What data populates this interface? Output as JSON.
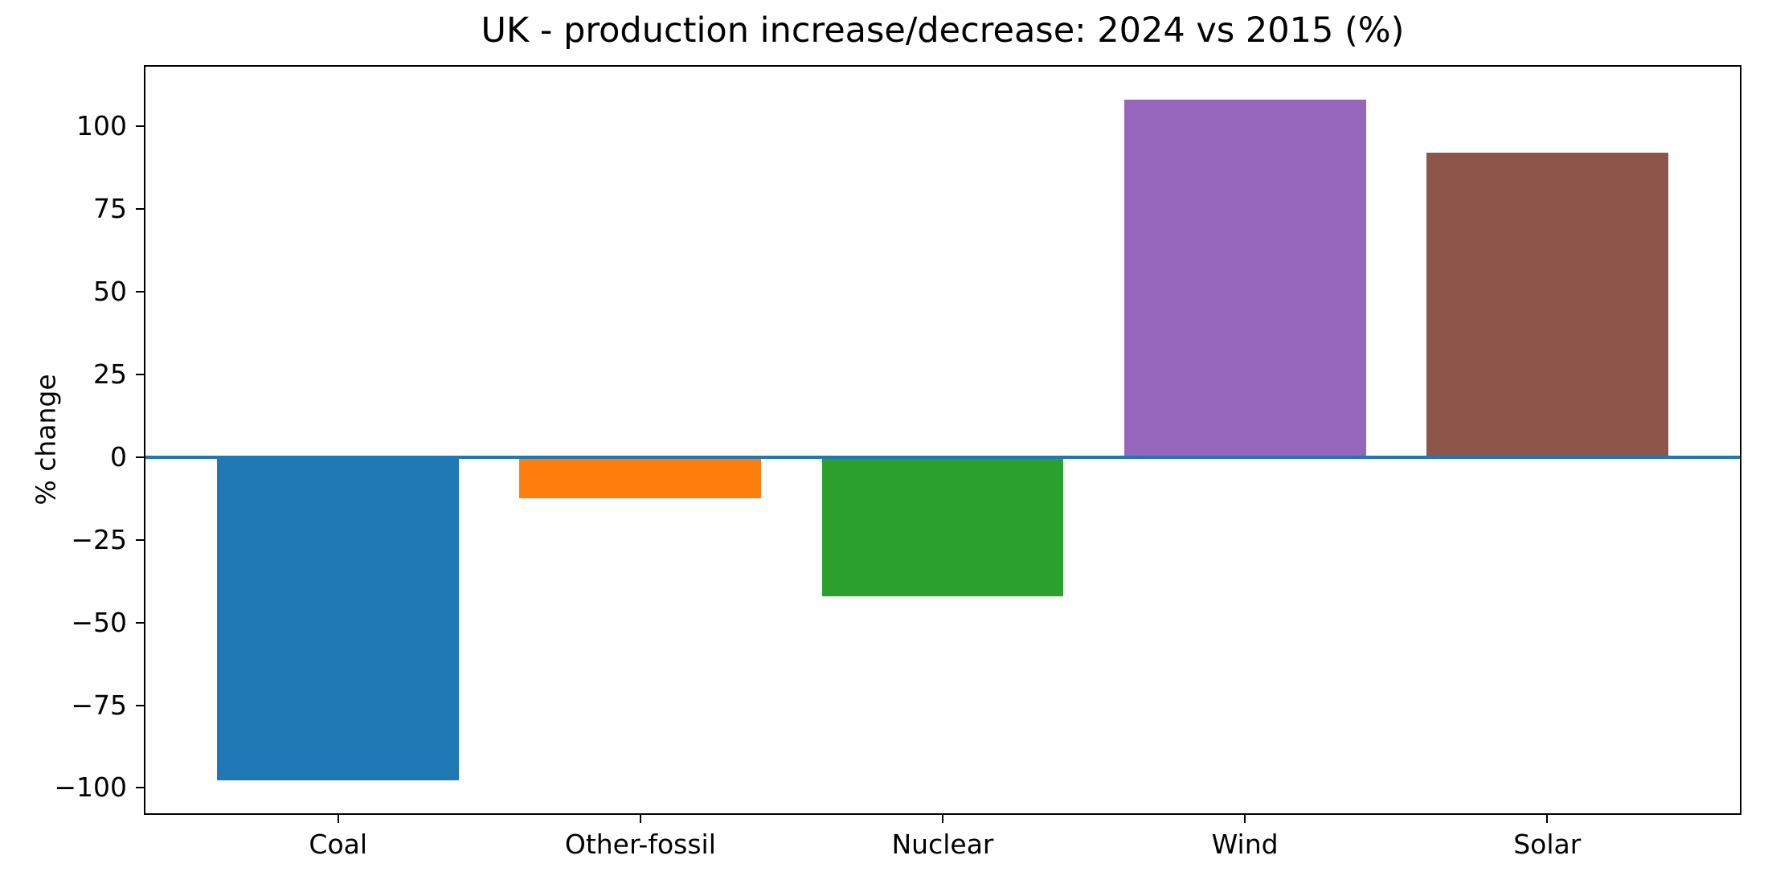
{
  "chart_data": {
    "type": "bar",
    "title": "UK - production increase/decrease: 2024 vs 2015 (%)",
    "xlabel": "",
    "ylabel": "% change",
    "categories": [
      "Coal",
      "Other-fossil",
      "Nuclear",
      "Wind",
      "Solar"
    ],
    "values": [
      -97.6,
      -12.5,
      -42.0,
      107.9,
      92.0
    ],
    "bar_colors": [
      "#1f77b4",
      "#ff7f0e",
      "#2ca02c",
      "#9467bd",
      "#8c564b"
    ],
    "yticks": [
      100,
      75,
      50,
      25,
      0,
      -25,
      -50,
      -75,
      -100
    ],
    "ylim": [
      -107.9,
      118.2
    ],
    "zero_line_color": "#1f77b4",
    "axis_color": "#000000",
    "background_color": "#ffffff",
    "grid": false,
    "legend": null
  }
}
